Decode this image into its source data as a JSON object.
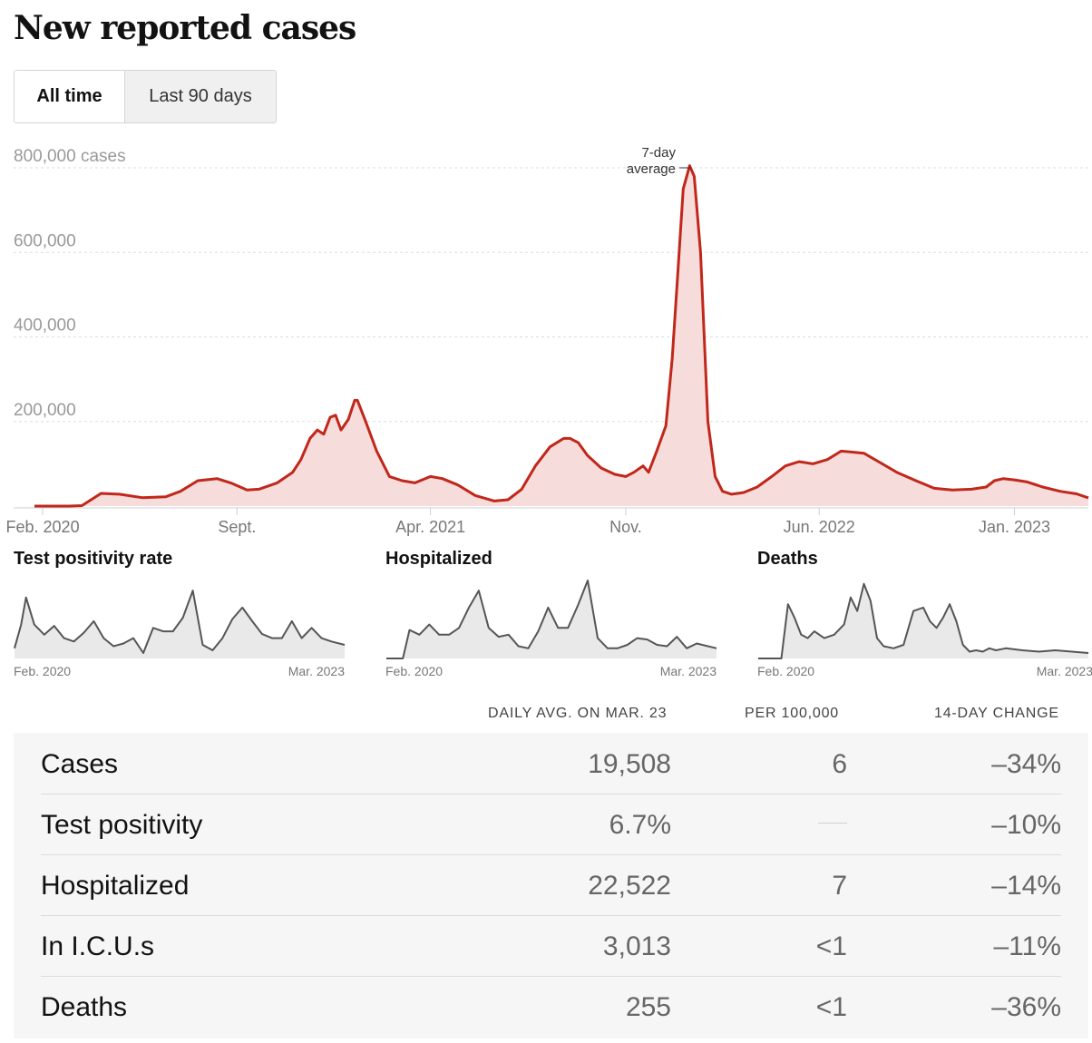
{
  "title": "New reported cases",
  "toggle": {
    "all_time": "All time",
    "last_90": "Last 90 days"
  },
  "colors": {
    "cases_line": "#c1271a",
    "cases_fill": "#f6dcdb",
    "mini_line": "#555555",
    "mini_fill": "#e9e9e9"
  },
  "chart_data": [
    {
      "type": "area",
      "title": "New reported cases",
      "series": [
        {
          "name": "7-day average",
          "x": [
            "2020-01-23",
            "2020-03-01",
            "2020-03-15",
            "2020-04-05",
            "2020-04-25",
            "2020-05-20",
            "2020-06-15",
            "2020-07-01",
            "2020-07-20",
            "2020-08-10",
            "2020-08-25",
            "2020-09-12",
            "2020-09-25",
            "2020-10-15",
            "2020-11-01",
            "2020-11-10",
            "2020-11-20",
            "2020-11-28",
            "2020-12-05",
            "2020-12-12",
            "2020-12-18",
            "2020-12-24",
            "2021-01-01",
            "2021-01-08",
            "2021-01-11",
            "2021-01-20",
            "2021-02-01",
            "2021-02-15",
            "2021-03-01",
            "2021-03-15",
            "2021-04-01",
            "2021-04-14",
            "2021-05-01",
            "2021-05-20",
            "2021-06-10",
            "2021-06-25",
            "2021-07-10",
            "2021-07-25",
            "2021-08-10",
            "2021-08-25",
            "2021-09-01",
            "2021-09-10",
            "2021-09-20",
            "2021-10-05",
            "2021-10-20",
            "2021-11-01",
            "2021-11-10",
            "2021-11-20",
            "2021-11-26",
            "2021-12-05",
            "2021-12-15",
            "2021-12-22",
            "2021-12-28",
            "2022-01-03",
            "2022-01-10",
            "2022-01-15",
            "2022-01-22",
            "2022-01-30",
            "2022-02-07",
            "2022-02-15",
            "2022-02-25",
            "2022-03-10",
            "2022-03-25",
            "2022-04-10",
            "2022-04-25",
            "2022-05-10",
            "2022-05-25",
            "2022-06-10",
            "2022-06-25",
            "2022-07-05",
            "2022-07-20",
            "2022-08-05",
            "2022-08-25",
            "2022-09-15",
            "2022-10-05",
            "2022-10-25",
            "2022-11-15",
            "2022-12-01",
            "2022-12-10",
            "2022-12-20",
            "2023-01-01",
            "2023-01-15",
            "2023-02-01",
            "2023-02-20",
            "2023-03-10",
            "2023-03-23"
          ],
          "y": [
            0,
            0,
            1000,
            30000,
            28000,
            20000,
            22000,
            35000,
            60000,
            65000,
            55000,
            38000,
            40000,
            55000,
            80000,
            110000,
            160000,
            180000,
            170000,
            210000,
            215000,
            180000,
            205000,
            250000,
            250000,
            200000,
            130000,
            70000,
            60000,
            55000,
            70000,
            65000,
            50000,
            25000,
            12000,
            15000,
            40000,
            95000,
            140000,
            160000,
            160000,
            150000,
            120000,
            90000,
            75000,
            70000,
            80000,
            95000,
            80000,
            130000,
            190000,
            350000,
            550000,
            750000,
            805000,
            780000,
            600000,
            200000,
            70000,
            35000,
            28000,
            32000,
            45000,
            70000,
            95000,
            105000,
            100000,
            110000,
            130000,
            128000,
            125000,
            105000,
            80000,
            60000,
            42000,
            38000,
            40000,
            45000,
            60000,
            65000,
            62000,
            57000,
            45000,
            35000,
            29000,
            19508
          ]
        }
      ],
      "y_ticks": [
        "800,000 cases",
        "600,000",
        "400,000",
        "200,000"
      ],
      "y_tick_values": [
        800000,
        600000,
        400000,
        200000
      ],
      "ylim": [
        0,
        800000
      ],
      "xlim": [
        "2020-01-23",
        "2023-03-23"
      ],
      "x_ticks": [
        "Feb. 2020",
        "Sept.",
        "Apr. 2021",
        "Nov.",
        "Jun. 2022",
        "Jan. 2023"
      ],
      "x_tick_dates": [
        "2020-02-01",
        "2020-09-01",
        "2021-04-01",
        "2021-11-01",
        "2022-06-01",
        "2023-01-01"
      ],
      "annotation": [
        "7-day",
        "average"
      ],
      "grid": true
    },
    {
      "type": "area",
      "title": "Test positivity rate",
      "x_range": [
        "Feb. 2020",
        "Mar. 2023"
      ],
      "x": [
        0,
        0.02,
        0.035,
        0.06,
        0.09,
        0.12,
        0.15,
        0.18,
        0.21,
        0.24,
        0.27,
        0.3,
        0.33,
        0.36,
        0.39,
        0.42,
        0.45,
        0.48,
        0.51,
        0.54,
        0.57,
        0.6,
        0.63,
        0.66,
        0.69,
        0.72,
        0.75,
        0.78,
        0.81,
        0.84,
        0.87,
        0.9,
        0.93,
        0.96,
        1
      ],
      "y": [
        0.15,
        0.5,
        0.9,
        0.5,
        0.35,
        0.48,
        0.3,
        0.25,
        0.38,
        0.55,
        0.3,
        0.18,
        0.22,
        0.3,
        0.08,
        0.45,
        0.4,
        0.4,
        0.6,
        1.0,
        0.2,
        0.12,
        0.3,
        0.58,
        0.75,
        0.55,
        0.36,
        0.3,
        0.3,
        0.55,
        0.3,
        0.45,
        0.3,
        0.25,
        0.2
      ]
    },
    {
      "type": "area",
      "title": "Hospitalized",
      "x_range": [
        "Feb. 2020",
        "Mar. 2023"
      ],
      "x": [
        0,
        0.05,
        0.07,
        0.1,
        0.13,
        0.16,
        0.19,
        0.22,
        0.25,
        0.28,
        0.31,
        0.34,
        0.37,
        0.4,
        0.43,
        0.46,
        0.49,
        0.52,
        0.55,
        0.58,
        0.61,
        0.64,
        0.67,
        0.7,
        0.73,
        0.76,
        0.79,
        0.82,
        0.85,
        0.88,
        0.91,
        0.94,
        1
      ],
      "y": [
        0,
        0,
        0.42,
        0.35,
        0.5,
        0.35,
        0.35,
        0.45,
        0.75,
        1.0,
        0.45,
        0.32,
        0.35,
        0.18,
        0.15,
        0.4,
        0.75,
        0.45,
        0.45,
        0.78,
        1.15,
        0.3,
        0.15,
        0.15,
        0.2,
        0.3,
        0.28,
        0.2,
        0.18,
        0.32,
        0.15,
        0.22,
        0.15
      ]
    },
    {
      "type": "area",
      "title": "Deaths",
      "x_range": [
        "Feb. 2020",
        "Mar. 2023"
      ],
      "x": [
        0,
        0.07,
        0.09,
        0.11,
        0.13,
        0.15,
        0.17,
        0.2,
        0.23,
        0.26,
        0.28,
        0.3,
        0.32,
        0.34,
        0.36,
        0.38,
        0.41,
        0.44,
        0.47,
        0.5,
        0.52,
        0.54,
        0.56,
        0.58,
        0.6,
        0.62,
        0.64,
        0.66,
        0.68,
        0.7,
        0.72,
        0.75,
        0.8,
        0.85,
        0.9,
        0.95,
        1
      ],
      "y": [
        0,
        0,
        0.8,
        0.6,
        0.35,
        0.3,
        0.4,
        0.3,
        0.35,
        0.5,
        0.9,
        0.7,
        1.1,
        0.85,
        0.3,
        0.18,
        0.15,
        0.2,
        0.7,
        0.75,
        0.55,
        0.45,
        0.6,
        0.8,
        0.55,
        0.2,
        0.1,
        0.12,
        0.1,
        0.15,
        0.12,
        0.15,
        0.12,
        0.1,
        0.12,
        0.1,
        0.08
      ]
    }
  ],
  "minis": {
    "positivity": {
      "title": "Test positivity rate",
      "start": "Feb. 2020",
      "end": "Mar. 2023"
    },
    "hospitalized": {
      "title": "Hospitalized",
      "start": "Feb. 2020",
      "end": "Mar. 2023"
    },
    "deaths": {
      "title": "Deaths",
      "start": "Feb. 2020",
      "end": "Mar. 2023"
    }
  },
  "table": {
    "headers": [
      "DAILY AVG. ON MAR. 23",
      "PER 100,000",
      "14-DAY CHANGE"
    ],
    "rows": [
      {
        "metric": "Cases",
        "avg": "19,508",
        "per": "6",
        "change": "–34%"
      },
      {
        "metric": "Test positivity",
        "avg": "6.7%",
        "per": "",
        "change": "–10%"
      },
      {
        "metric": "Hospitalized",
        "avg": "22,522",
        "per": "7",
        "change": "–14%"
      },
      {
        "metric": "In I.C.U.s",
        "avg": "3,013",
        "per": "<1",
        "change": "–11%"
      },
      {
        "metric": "Deaths",
        "avg": "255",
        "per": "<1",
        "change": "–36%"
      }
    ]
  }
}
